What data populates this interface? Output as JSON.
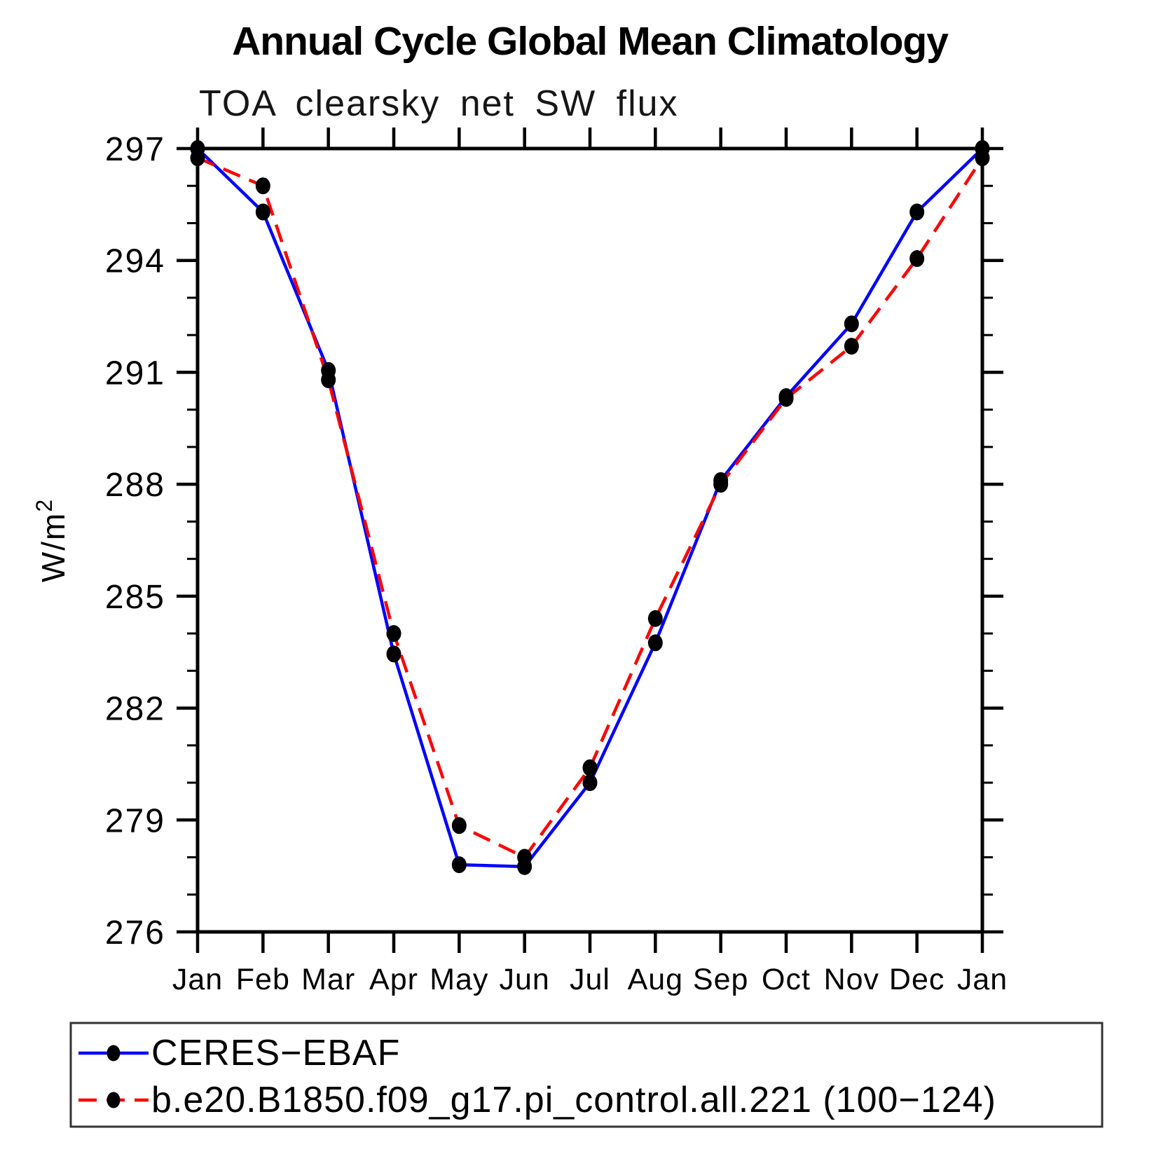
{
  "header": {
    "title": "Annual Cycle Global Mean Climatology",
    "subtitle": "TOA clearsky net SW flux"
  },
  "chart_data": {
    "type": "line",
    "title": "Annual Cycle Global Mean Climatology",
    "subtitle": "TOA clearsky net SW flux",
    "xlabel": "",
    "ylabel": "W/m²",
    "ylim": [
      276,
      297
    ],
    "y_major_ticks": [
      276,
      279,
      282,
      285,
      288,
      291,
      294,
      297
    ],
    "y_minor_step": 1,
    "grid": false,
    "legend_position": "bottom-left",
    "categories": [
      "Jan",
      "Feb",
      "Mar",
      "Apr",
      "May",
      "Jun",
      "Jul",
      "Aug",
      "Sep",
      "Oct",
      "Nov",
      "Dec",
      "Jan"
    ],
    "series": [
      {
        "name": "CERES−EBAF",
        "color": "#0000ff",
        "line_style": "solid",
        "marker": "dot",
        "marker_color": "#000000",
        "values": [
          297.0,
          295.3,
          291.05,
          283.45,
          277.8,
          277.75,
          280.0,
          283.75,
          288.1,
          290.35,
          292.3,
          295.3,
          297.0
        ]
      },
      {
        "name": "b.e20.B1850.f09_g17.pi_control.all.221 (100−124)",
        "color": "#ff0000",
        "line_style": "dashed",
        "marker": "dot",
        "marker_color": "#000000",
        "values": [
          296.75,
          296.0,
          290.8,
          284.0,
          278.85,
          278.0,
          280.4,
          284.4,
          288.0,
          290.3,
          291.7,
          294.05,
          296.75
        ]
      }
    ]
  }
}
